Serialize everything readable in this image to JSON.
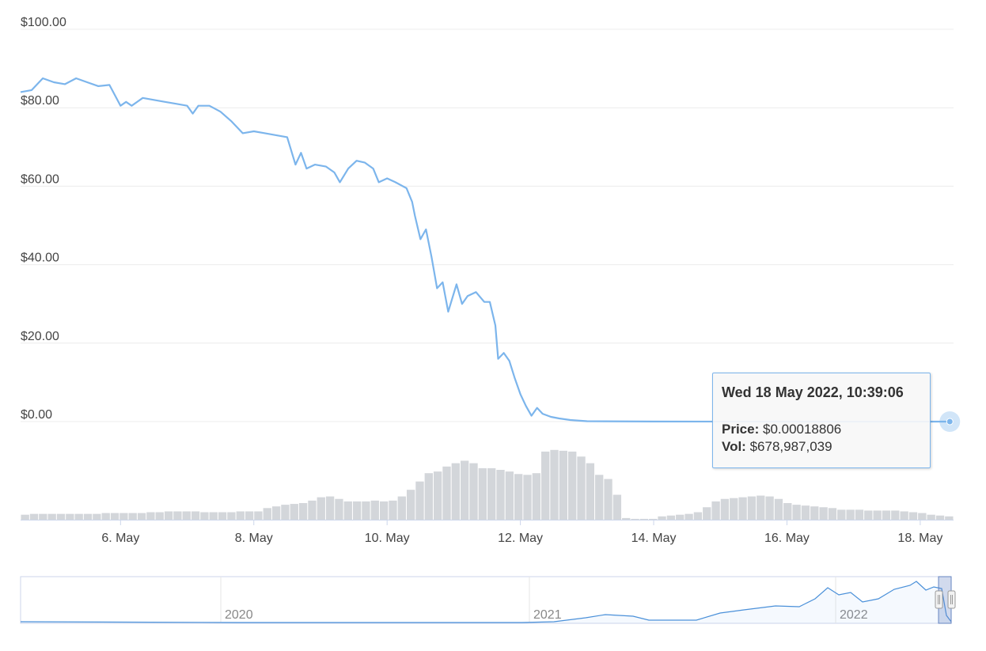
{
  "colors": {
    "line": "#7cb5ec",
    "volume": "#d3d6da",
    "grid": "#ececec",
    "navigator_line": "#4a90d9"
  },
  "chart_data": [
    {
      "type": "line",
      "title": "",
      "y_ticks": [
        "$100.00",
        "$80.00",
        "$60.00",
        "$40.00",
        "$20.00",
        "$0.00"
      ],
      "ylim": [
        0,
        100
      ],
      "x_ticks": [
        "6. May",
        "8. May",
        "10. May",
        "12. May",
        "14. May",
        "16. May",
        "18. May"
      ],
      "xlim": [
        "2022-05-04T12:00",
        "2022-05-18T12:00"
      ],
      "grid": true,
      "series": [
        {
          "points": [
            [
              "2022-05-04T12:00",
              84
            ],
            [
              "2022-05-04T16:00",
              84.5
            ],
            [
              "2022-05-04T20:00",
              87.5
            ],
            [
              "2022-05-05T00:00",
              86.5
            ],
            [
              "2022-05-05T04:00",
              86
            ],
            [
              "2022-05-05T08:00",
              87.5
            ],
            [
              "2022-05-05T12:00",
              86.5
            ],
            [
              "2022-05-05T16:00",
              85.5
            ],
            [
              "2022-05-05T20:00",
              85.8
            ],
            [
              "2022-05-06T00:00",
              80.5
            ],
            [
              "2022-05-06T02:00",
              81.5
            ],
            [
              "2022-05-06T04:00",
              80.5
            ],
            [
              "2022-05-06T08:00",
              82.5
            ],
            [
              "2022-05-06T12:00",
              82
            ],
            [
              "2022-05-06T16:00",
              81.5
            ],
            [
              "2022-05-06T20:00",
              81
            ],
            [
              "2022-05-07T00:00",
              80.5
            ],
            [
              "2022-05-07T02:00",
              78.5
            ],
            [
              "2022-05-07T04:00",
              80.5
            ],
            [
              "2022-05-07T08:00",
              80.5
            ],
            [
              "2022-05-07T12:00",
              79
            ],
            [
              "2022-05-07T16:00",
              76.5
            ],
            [
              "2022-05-07T20:00",
              73.5
            ],
            [
              "2022-05-08T00:00",
              74
            ],
            [
              "2022-05-08T04:00",
              73.5
            ],
            [
              "2022-05-08T08:00",
              73
            ],
            [
              "2022-05-08T12:00",
              72.5
            ],
            [
              "2022-05-08T15:00",
              65.5
            ],
            [
              "2022-05-08T17:00",
              68.5
            ],
            [
              "2022-05-08T19:00",
              64.5
            ],
            [
              "2022-05-08T22:00",
              65.5
            ],
            [
              "2022-05-09T02:00",
              65
            ],
            [
              "2022-05-09T05:00",
              63.5
            ],
            [
              "2022-05-09T07:00",
              61
            ],
            [
              "2022-05-09T10:00",
              64.5
            ],
            [
              "2022-05-09T13:00",
              66.5
            ],
            [
              "2022-05-09T16:00",
              66
            ],
            [
              "2022-05-09T19:00",
              64.5
            ],
            [
              "2022-05-09T21:00",
              61
            ],
            [
              "2022-05-10T00:00",
              62
            ],
            [
              "2022-05-10T03:00",
              61
            ],
            [
              "2022-05-10T07:00",
              59.5
            ],
            [
              "2022-05-10T09:00",
              56
            ],
            [
              "2022-05-10T10:00",
              52.5
            ],
            [
              "2022-05-10T12:00",
              46.5
            ],
            [
              "2022-05-10T14:00",
              49
            ],
            [
              "2022-05-10T16:00",
              42
            ],
            [
              "2022-05-10T18:00",
              34
            ],
            [
              "2022-05-10T20:00",
              35.5
            ],
            [
              "2022-05-10T22:00",
              28
            ],
            [
              "2022-05-11T01:00",
              35
            ],
            [
              "2022-05-11T03:00",
              30
            ],
            [
              "2022-05-11T05:00",
              32
            ],
            [
              "2022-05-11T08:00",
              33
            ],
            [
              "2022-05-11T11:00",
              30.5
            ],
            [
              "2022-05-11T13:00",
              30.5
            ],
            [
              "2022-05-11T15:00",
              24.5
            ],
            [
              "2022-05-11T16:00",
              16
            ],
            [
              "2022-05-11T18:00",
              17.5
            ],
            [
              "2022-05-11T20:00",
              15.5
            ],
            [
              "2022-05-11T22:00",
              11
            ],
            [
              "2022-05-12T00:00",
              7
            ],
            [
              "2022-05-12T02:00",
              4
            ],
            [
              "2022-05-12T04:00",
              1.5
            ],
            [
              "2022-05-12T06:00",
              3.5
            ],
            [
              "2022-05-12T08:00",
              2
            ],
            [
              "2022-05-12T11:00",
              1.2
            ],
            [
              "2022-05-12T14:00",
              0.8
            ],
            [
              "2022-05-12T18:00",
              0.4
            ],
            [
              "2022-05-13T00:00",
              0.1
            ],
            [
              "2022-05-14T00:00",
              0.02
            ],
            [
              "2022-05-16T00:00",
              0.0005
            ],
            [
              "2022-05-18T10:39",
              0.00018806
            ]
          ]
        }
      ],
      "volume_note": "grey volume bars beneath price line",
      "volume_relative": [
        0.06,
        0.07,
        0.07,
        0.07,
        0.07,
        0.07,
        0.07,
        0.07,
        0.07,
        0.08,
        0.08,
        0.08,
        0.08,
        0.08,
        0.09,
        0.09,
        0.1,
        0.1,
        0.1,
        0.1,
        0.09,
        0.09,
        0.09,
        0.09,
        0.1,
        0.1,
        0.1,
        0.14,
        0.16,
        0.18,
        0.19,
        0.2,
        0.23,
        0.27,
        0.28,
        0.25,
        0.22,
        0.22,
        0.22,
        0.23,
        0.22,
        0.23,
        0.28,
        0.36,
        0.46,
        0.56,
        0.58,
        0.64,
        0.68,
        0.71,
        0.68,
        0.62,
        0.62,
        0.6,
        0.58,
        0.55,
        0.54,
        0.56,
        0.82,
        0.84,
        0.83,
        0.82,
        0.76,
        0.68,
        0.54,
        0.49,
        0.3,
        0.02,
        0.01,
        0.01,
        0.01,
        0.04,
        0.05,
        0.06,
        0.07,
        0.09,
        0.15,
        0.22,
        0.25,
        0.26,
        0.27,
        0.28,
        0.29,
        0.28,
        0.25,
        0.2,
        0.18,
        0.17,
        0.16,
        0.15,
        0.14,
        0.12,
        0.12,
        0.12,
        0.11,
        0.11,
        0.11,
        0.11,
        0.1,
        0.09,
        0.08,
        0.06,
        0.05,
        0.04
      ]
    },
    {
      "type": "area",
      "role": "navigator",
      "x_ticks": [
        "2020",
        "2021",
        "2022"
      ]
    }
  ],
  "tooltip": {
    "date": "Wed 18 May 2022, 10:39:06",
    "price_label": "Price:",
    "price_value": "$0.00018806",
    "vol_label": "Vol:",
    "vol_value": "$678,987,039"
  }
}
